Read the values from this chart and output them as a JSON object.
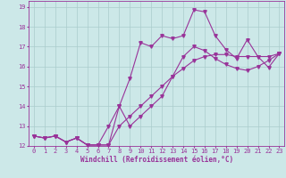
{
  "xlabel": "Windchill (Refroidissement éolien,°C)",
  "ylabel": "",
  "xlim": [
    -0.5,
    23.5
  ],
  "ylim": [
    12,
    19.3
  ],
  "bg_color": "#cce8e8",
  "line_color": "#993399",
  "grid_color": "#aacccc",
  "line1_x": [
    0,
    1,
    2,
    3,
    4,
    5,
    6,
    7,
    8,
    9,
    10,
    11,
    12,
    13,
    14,
    15,
    16,
    17,
    18,
    19,
    20,
    21,
    22,
    23
  ],
  "line1_y": [
    12.5,
    12.4,
    12.5,
    12.2,
    12.4,
    12.05,
    12.05,
    13.0,
    14.0,
    15.4,
    17.2,
    17.0,
    17.55,
    17.4,
    17.55,
    18.85,
    18.75,
    17.55,
    16.85,
    16.4,
    17.35,
    16.5,
    15.95,
    16.65
  ],
  "line2_x": [
    0,
    1,
    2,
    3,
    4,
    5,
    6,
    7,
    8,
    9,
    10,
    11,
    12,
    13,
    14,
    15,
    16,
    17,
    18,
    19,
    20,
    21,
    22,
    23
  ],
  "line2_y": [
    12.5,
    12.4,
    12.5,
    12.2,
    12.4,
    12.05,
    12.05,
    12.05,
    14.0,
    13.0,
    13.5,
    14.0,
    14.5,
    15.5,
    16.5,
    17.0,
    16.8,
    16.4,
    16.1,
    15.9,
    15.8,
    16.0,
    16.3,
    16.65
  ],
  "line3_x": [
    0,
    1,
    2,
    3,
    4,
    5,
    6,
    7,
    8,
    9,
    10,
    11,
    12,
    13,
    14,
    15,
    16,
    17,
    18,
    19,
    20,
    21,
    22,
    23
  ],
  "line3_y": [
    12.5,
    12.4,
    12.5,
    12.2,
    12.4,
    12.05,
    12.05,
    12.05,
    13.0,
    13.5,
    14.0,
    14.5,
    15.0,
    15.5,
    15.9,
    16.3,
    16.5,
    16.6,
    16.6,
    16.5,
    16.5,
    16.5,
    16.5,
    16.65
  ],
  "marker": "v",
  "markersize": 2.5,
  "linewidth": 0.8,
  "label_fontsize": 5.5,
  "tick_fontsize": 5.0
}
